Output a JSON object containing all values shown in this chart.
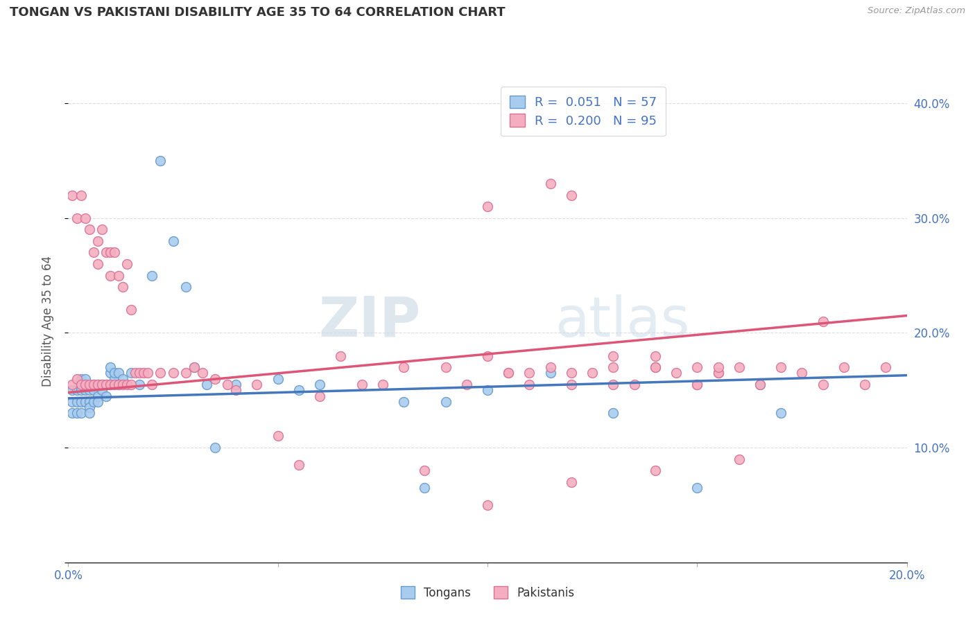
{
  "title": "TONGAN VS PAKISTANI DISABILITY AGE 35 TO 64 CORRELATION CHART",
  "source_text": "Source: ZipAtlas.com",
  "ylabel": "Disability Age 35 to 64",
  "xlim": [
    0.0,
    0.2
  ],
  "ylim": [
    0.0,
    0.42
  ],
  "tongan_color": "#a8ccee",
  "tongan_edge": "#6699cc",
  "pakistani_color": "#f4aec0",
  "pakistani_edge": "#d97095",
  "trendline_tongan_color": "#4477bb",
  "trendline_pakistani_color": "#dd5577",
  "watermark_zip": "ZIP",
  "watermark_atlas": "atlas",
  "background_color": "#ffffff",
  "grid_color": "#dddddd",
  "tongan_x": [
    0.001,
    0.001,
    0.001,
    0.002,
    0.002,
    0.002,
    0.003,
    0.003,
    0.003,
    0.003,
    0.004,
    0.004,
    0.004,
    0.005,
    0.005,
    0.005,
    0.005,
    0.006,
    0.006,
    0.006,
    0.007,
    0.007,
    0.007,
    0.008,
    0.008,
    0.009,
    0.009,
    0.01,
    0.01,
    0.01,
    0.011,
    0.011,
    0.012,
    0.012,
    0.013,
    0.015,
    0.017,
    0.02,
    0.022,
    0.025,
    0.028,
    0.03,
    0.033,
    0.035,
    0.04,
    0.05,
    0.055,
    0.06,
    0.08,
    0.085,
    0.09,
    0.1,
    0.115,
    0.13,
    0.15,
    0.165,
    0.17
  ],
  "tongan_y": [
    0.14,
    0.15,
    0.13,
    0.14,
    0.15,
    0.13,
    0.14,
    0.15,
    0.16,
    0.13,
    0.14,
    0.15,
    0.16,
    0.14,
    0.15,
    0.135,
    0.13,
    0.155,
    0.14,
    0.15,
    0.145,
    0.155,
    0.14,
    0.15,
    0.155,
    0.145,
    0.155,
    0.155,
    0.165,
    0.17,
    0.16,
    0.165,
    0.155,
    0.165,
    0.16,
    0.165,
    0.155,
    0.25,
    0.35,
    0.28,
    0.24,
    0.17,
    0.155,
    0.1,
    0.155,
    0.16,
    0.15,
    0.155,
    0.14,
    0.065,
    0.14,
    0.15,
    0.165,
    0.13,
    0.065,
    0.155,
    0.13
  ],
  "pakistani_x": [
    0.001,
    0.001,
    0.002,
    0.002,
    0.003,
    0.003,
    0.004,
    0.004,
    0.005,
    0.005,
    0.006,
    0.006,
    0.007,
    0.007,
    0.007,
    0.008,
    0.008,
    0.009,
    0.009,
    0.01,
    0.01,
    0.01,
    0.011,
    0.011,
    0.012,
    0.012,
    0.013,
    0.013,
    0.014,
    0.014,
    0.015,
    0.015,
    0.016,
    0.017,
    0.018,
    0.019,
    0.02,
    0.022,
    0.025,
    0.028,
    0.03,
    0.032,
    0.035,
    0.038,
    0.04,
    0.045,
    0.05,
    0.055,
    0.06,
    0.065,
    0.07,
    0.075,
    0.08,
    0.085,
    0.09,
    0.095,
    0.1,
    0.105,
    0.11,
    0.12,
    0.13,
    0.14,
    0.15,
    0.155,
    0.16,
    0.165,
    0.17,
    0.175,
    0.18,
    0.185,
    0.19,
    0.195,
    0.1,
    0.115,
    0.12,
    0.13,
    0.14,
    0.15,
    0.155,
    0.105,
    0.11,
    0.115,
    0.12,
    0.125,
    0.13,
    0.135,
    0.14,
    0.145,
    0.15,
    0.155,
    0.1,
    0.12,
    0.14,
    0.16,
    0.18
  ],
  "pakistani_y": [
    0.155,
    0.32,
    0.16,
    0.3,
    0.155,
    0.32,
    0.155,
    0.3,
    0.155,
    0.29,
    0.155,
    0.27,
    0.155,
    0.28,
    0.26,
    0.155,
    0.29,
    0.155,
    0.27,
    0.155,
    0.25,
    0.27,
    0.155,
    0.27,
    0.155,
    0.25,
    0.155,
    0.24,
    0.155,
    0.26,
    0.155,
    0.22,
    0.165,
    0.165,
    0.165,
    0.165,
    0.155,
    0.165,
    0.165,
    0.165,
    0.17,
    0.165,
    0.16,
    0.155,
    0.15,
    0.155,
    0.11,
    0.085,
    0.145,
    0.18,
    0.155,
    0.155,
    0.17,
    0.08,
    0.17,
    0.155,
    0.18,
    0.165,
    0.165,
    0.165,
    0.155,
    0.17,
    0.155,
    0.165,
    0.17,
    0.155,
    0.17,
    0.165,
    0.155,
    0.17,
    0.155,
    0.17,
    0.31,
    0.33,
    0.32,
    0.18,
    0.18,
    0.17,
    0.165,
    0.165,
    0.155,
    0.17,
    0.155,
    0.165,
    0.17,
    0.155,
    0.17,
    0.165,
    0.155,
    0.17,
    0.05,
    0.07,
    0.08,
    0.09,
    0.21
  ],
  "trendline_tongan_x0": 0.0,
  "trendline_tongan_x1": 0.2,
  "trendline_tongan_y0": 0.143,
  "trendline_tongan_y1": 0.163,
  "trendline_pakistani_x0": 0.0,
  "trendline_pakistani_x1": 0.2,
  "trendline_pakistani_y0": 0.148,
  "trendline_pakistani_y1": 0.215
}
